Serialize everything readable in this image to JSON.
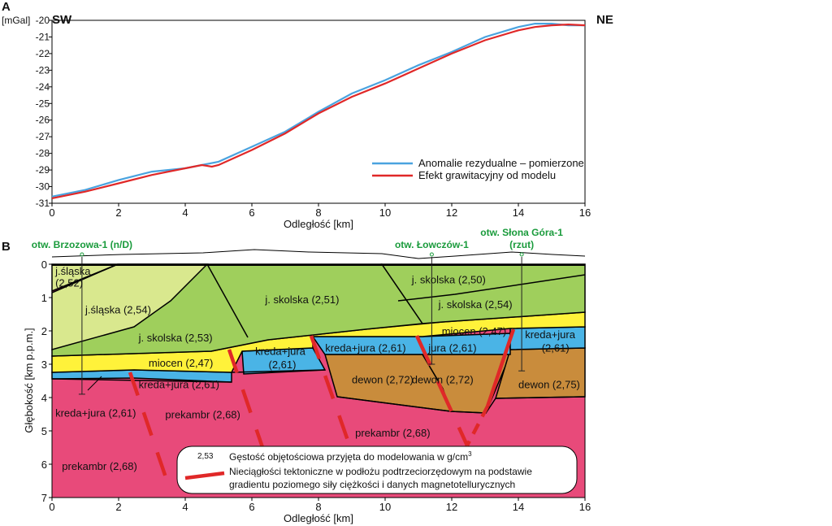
{
  "panel_a": {
    "letter": "A",
    "unit": "[mGal]",
    "dir_left": "SW",
    "dir_right": "NE",
    "xlabel": "Odległość [km]",
    "chart_data": {
      "type": "line",
      "xlim": [
        0,
        16
      ],
      "ylim": [
        -31,
        -20
      ],
      "x_ticks": [
        0,
        2,
        4,
        6,
        8,
        10,
        12,
        14,
        16
      ],
      "y_ticks": [
        -20,
        -21,
        -22,
        -23,
        -24,
        -25,
        -26,
        -27,
        -28,
        -29,
        -30,
        -31
      ],
      "series": [
        {
          "name": "Anomalie rezydualne – pomierzone",
          "color": "#4aa3df",
          "x": [
            0,
            1,
            2,
            3,
            4,
            5,
            6,
            7,
            8,
            9,
            10,
            11,
            12,
            13,
            14,
            14.5,
            15,
            15.5,
            16
          ],
          "y": [
            -30.6,
            -30.2,
            -29.6,
            -29.1,
            -28.9,
            -28.5,
            -27.6,
            -26.7,
            -25.5,
            -24.4,
            -23.6,
            -22.7,
            -21.9,
            -21.0,
            -20.4,
            -20.2,
            -20.2,
            -20.3,
            -20.3
          ]
        },
        {
          "name": "Efekt grawitacyjny od modelu",
          "color": "#e02828",
          "x": [
            0,
            1,
            2,
            3,
            4,
            4.5,
            4.8,
            5,
            6,
            7,
            8,
            9,
            10,
            11,
            12,
            13,
            14,
            14.5,
            15,
            15.5,
            16
          ],
          "y": [
            -30.7,
            -30.3,
            -29.8,
            -29.3,
            -28.9,
            -28.7,
            -28.8,
            -28.7,
            -27.8,
            -26.8,
            -25.6,
            -24.6,
            -23.8,
            -22.9,
            -22.0,
            -21.2,
            -20.6,
            -20.4,
            -20.3,
            -20.25,
            -20.3
          ]
        }
      ]
    }
  },
  "panel_b": {
    "letter": "B",
    "ylabel": "Głębokość [km p.p.m.]",
    "xlabel": "Odległość [km]",
    "chart_data": {
      "type": "area",
      "xlim": [
        0,
        16
      ],
      "ylim": [
        7,
        0
      ],
      "x_ticks": [
        0,
        2,
        4,
        6,
        8,
        10,
        12,
        14,
        16
      ],
      "y_ticks": [
        0,
        1,
        2,
        3,
        4,
        5,
        6,
        7
      ],
      "colors": {
        "slaska": "#d9e88e",
        "skolska": "#9fcf5c",
        "miocen": "#fff23a",
        "kreda": "#4ab4e6",
        "dewon": "#c98c3c",
        "prekambr": "#e84a7a",
        "fault": "#e02828"
      },
      "wells": [
        {
          "name": "otw. Brzozowa-1 (n/D)",
          "x": 0.9,
          "bottom": 3.9
        },
        {
          "name": "otw. Łowczów-1",
          "x": 11.4,
          "bottom": 3.0
        },
        {
          "name": "otw. Słona Góra-1",
          "name2": "(rzut)",
          "x": 14.1,
          "bottom": 3.2
        }
      ],
      "unit_labels": [
        {
          "text": "j.śląska",
          "x": 0.1,
          "y": 0.2
        },
        {
          "text": "(2,52)",
          "x": 0.1,
          "y": 0.55
        },
        {
          "text": "j.śląska (2,54)",
          "x": 1.0,
          "y": 1.35
        },
        {
          "text": "j. skolska (2,53)",
          "x": 2.6,
          "y": 2.2
        },
        {
          "text": "j. skolska (2,51)",
          "x": 6.4,
          "y": 1.05
        },
        {
          "text": "j. skolska (2,50)",
          "x": 10.8,
          "y": 0.45
        },
        {
          "text": "j. skolska (2,54)",
          "x": 11.6,
          "y": 1.2
        },
        {
          "text": "miocen (2,47)",
          "x": 2.9,
          "y": 2.95
        },
        {
          "text": "miocen (2,47)",
          "x": 11.7,
          "y": 2.0
        },
        {
          "text": "kreda+jura",
          "x": 6.1,
          "y": 2.6
        },
        {
          "text": "(2,61)",
          "x": 6.5,
          "y": 3.0
        },
        {
          "text": "kreda+jura (2,61)",
          "x": 2.6,
          "y": 3.6
        },
        {
          "text": "kreda+jura (2,61)",
          "x": 8.2,
          "y": 2.5
        },
        {
          "text": "jura (2,61)",
          "x": 11.3,
          "y": 2.5
        },
        {
          "text": "kreda+jura",
          "x": 14.2,
          "y": 2.1
        },
        {
          "text": "(2,61)",
          "x": 14.7,
          "y": 2.5
        },
        {
          "text": "dewon (2,72)",
          "x": 9.0,
          "y": 3.45
        },
        {
          "text": "dewon (2,72)",
          "x": 10.8,
          "y": 3.45
        },
        {
          "text": "dewon (2,75)",
          "x": 14.0,
          "y": 3.6
        },
        {
          "text": "kreda+jura (2,61)",
          "x": 0.1,
          "y": 4.45
        },
        {
          "text": "prekambr (2,68)",
          "x": 3.4,
          "y": 4.5
        },
        {
          "text": "prekambr (2,68)",
          "x": 9.1,
          "y": 5.05
        },
        {
          "text": "prekambr (2,68)",
          "x": 0.3,
          "y": 6.05
        }
      ]
    },
    "legend": {
      "density_sample": "2,53",
      "density_text": "Gęstość objętościowa przyjęta do modelowania w g/cm",
      "density_sup": "3",
      "fault_text_1": "Nieciągłości tektoniczne w podłożu podtrzeciorzędowym na podstawie",
      "fault_text_2": "gradientu poziomego siły ciężkości i danych magnetotellurycznych"
    }
  }
}
